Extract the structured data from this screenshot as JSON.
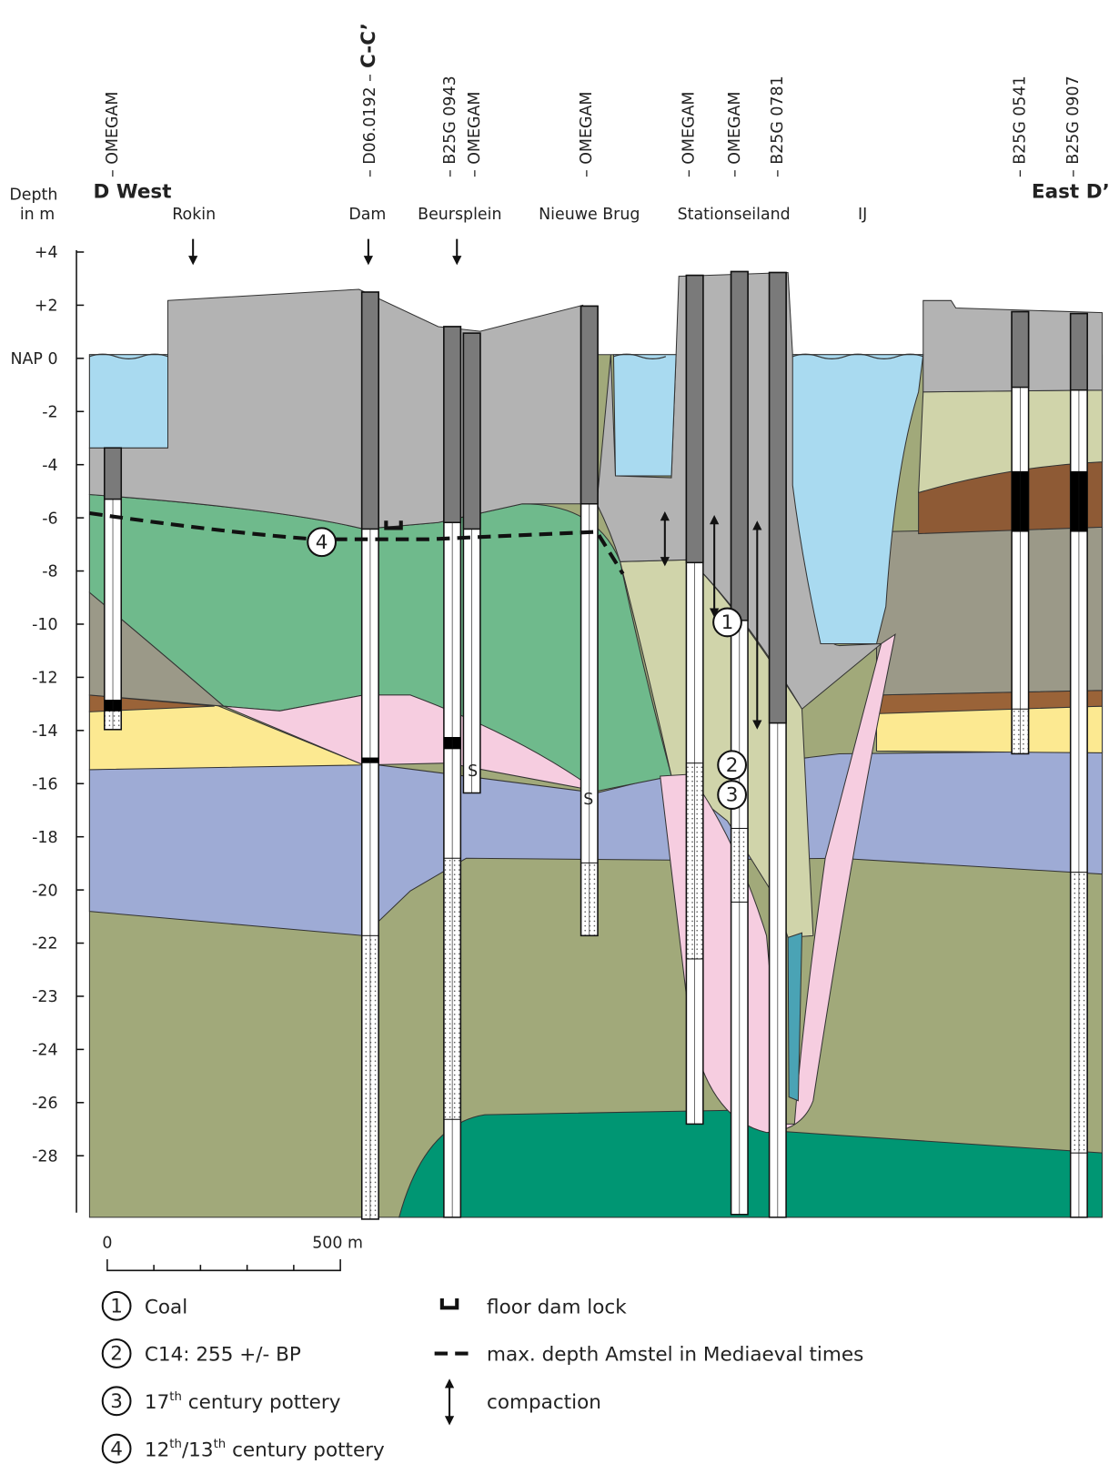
{
  "header": {
    "depth_label": [
      "Depth",
      "in m"
    ],
    "west_label": "D West",
    "east_label": "East D’",
    "section_marker": "C-C’"
  },
  "boreholes": [
    "– OMEGAM",
    "– D06.0192 –",
    "– B25G 0943",
    "– OMEGAM",
    "– OMEGAM",
    "– OMEGAM",
    "– OMEGAM",
    "– B25G 0781",
    "– B25G 0541",
    "– B25G 0907"
  ],
  "locations": [
    "Rokin",
    "Dam",
    "Beursplein",
    "Nieuwe Brug",
    "Stationseiland",
    "IJ"
  ],
  "depth_axis": [
    "+4",
    "+2",
    "NAP 0",
    "-2",
    "-4",
    "-6",
    "-8",
    "-10",
    "-12",
    "-14",
    "-16",
    "-18",
    "-20",
    "-22",
    "-23",
    "-24",
    "-26",
    "-28"
  ],
  "markers": [
    "4",
    "1",
    "2",
    "3"
  ],
  "sand_labels": [
    "S",
    "S"
  ],
  "scale_bar": {
    "start": "0",
    "end": "500 m"
  },
  "legend_left": [
    {
      "number": "1",
      "parts": [
        "Coal"
      ]
    },
    {
      "number": "2",
      "parts": [
        "C14: 255 +/- BP"
      ]
    },
    {
      "number": "3",
      "parts": [
        "17",
        "th",
        " century pottery"
      ]
    },
    {
      "number": "4",
      "parts": [
        "12",
        "th",
        "/13",
        "th",
        " century pottery"
      ]
    }
  ],
  "legend_right": [
    "floor dam lock",
    "max. depth Amstel in Mediaeval times",
    "compaction"
  ]
}
